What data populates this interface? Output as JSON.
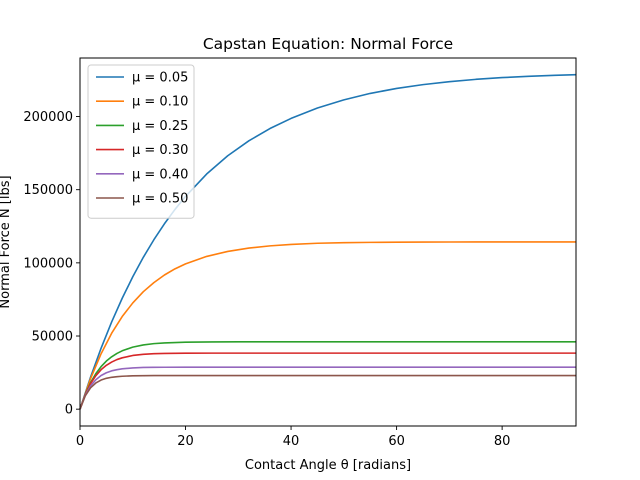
{
  "chart_data": {
    "type": "line",
    "title": "Capstan Equation: Normal Force",
    "xlabel": "Contact Angle θ [radians]",
    "ylabel": "Normal Force N [lbs]",
    "xlim": [
      0,
      94
    ],
    "ylim": [
      -11500,
      240000
    ],
    "xticks": [
      0,
      20,
      40,
      60,
      80
    ],
    "yticks": [
      0,
      50000,
      100000,
      150000,
      200000
    ],
    "legend_position": "top-left",
    "grid": false,
    "series": [
      {
        "name": "μ = 0.05",
        "color": "#1f77b4",
        "x": [
          0,
          2,
          4,
          6,
          8,
          10,
          12,
          14,
          16,
          18,
          20,
          24,
          28,
          32,
          36,
          40,
          45,
          50,
          55,
          60,
          65,
          70,
          75,
          80,
          85,
          90,
          94
        ],
        "y": [
          0,
          21900,
          41700,
          59600,
          75800,
          90500,
          103800,
          115800,
          126700,
          136500,
          145400,
          160700,
          173200,
          183400,
          191800,
          198700,
          205800,
          211400,
          215800,
          219200,
          221800,
          223800,
          225400,
          226600,
          227500,
          228200,
          228600
        ]
      },
      {
        "name": "μ = 0.10",
        "color": "#ff7f0e",
        "x": [
          0,
          2,
          4,
          6,
          8,
          10,
          12,
          14,
          16,
          18,
          20,
          24,
          28,
          32,
          36,
          40,
          45,
          50,
          55,
          60,
          65,
          70,
          75,
          80,
          85,
          90,
          94
        ],
        "y": [
          0,
          20850,
          37900,
          51900,
          63300,
          72600,
          80300,
          86500,
          91700,
          95900,
          99300,
          104400,
          107800,
          110100,
          111600,
          112600,
          113400,
          113800,
          114000,
          114150,
          114200,
          114250,
          114280,
          114290,
          114295,
          114300,
          114300
        ]
      },
      {
        "name": "μ = 0.25",
        "color": "#2ca02c",
        "x": [
          0,
          1,
          2,
          3,
          4,
          5,
          6,
          7,
          8,
          10,
          12,
          14,
          16,
          20,
          25,
          30,
          40,
          50,
          60,
          70,
          80,
          94
        ],
        "y": [
          0,
          10200,
          18100,
          24300,
          29100,
          32900,
          35800,
          38100,
          39900,
          42400,
          43900,
          44800,
          45300,
          45800,
          45950,
          46000,
          46000,
          46000,
          46000,
          46000,
          46000,
          46000
        ]
      },
      {
        "name": "μ = 0.30",
        "color": "#d62728",
        "x": [
          0,
          1,
          2,
          3,
          4,
          5,
          6,
          7,
          8,
          10,
          12,
          14,
          16,
          20,
          25,
          30,
          40,
          50,
          60,
          70,
          80,
          94
        ],
        "y": [
          0,
          10000,
          17400,
          22900,
          27000,
          30000,
          32200,
          33900,
          35100,
          36700,
          37500,
          37900,
          38100,
          38250,
          38300,
          38300,
          38300,
          38300,
          38300,
          38300,
          38300,
          38300
        ]
      },
      {
        "name": "μ = 0.40",
        "color": "#9467bd",
        "x": [
          0,
          1,
          2,
          3,
          4,
          5,
          6,
          7,
          8,
          10,
          12,
          14,
          16,
          20,
          25,
          30,
          40,
          50,
          60,
          70,
          80,
          94
        ],
        "y": [
          0,
          9500,
          15900,
          20100,
          23000,
          24900,
          26200,
          27000,
          27600,
          28200,
          28500,
          28600,
          28650,
          28700,
          28700,
          28700,
          28700,
          28700,
          28700,
          28700,
          28700,
          28700
        ]
      },
      {
        "name": "μ = 0.50",
        "color": "#8c564b",
        "x": [
          0,
          1,
          2,
          3,
          4,
          5,
          6,
          7,
          8,
          10,
          12,
          14,
          16,
          20,
          25,
          30,
          40,
          50,
          60,
          70,
          80,
          94
        ],
        "y": [
          0,
          9100,
          14600,
          17900,
          19900,
          21100,
          21800,
          22200,
          22500,
          22800,
          22900,
          22950,
          22980,
          23000,
          23000,
          23000,
          23000,
          23000,
          23000,
          23000,
          23000,
          23000
        ]
      }
    ]
  }
}
